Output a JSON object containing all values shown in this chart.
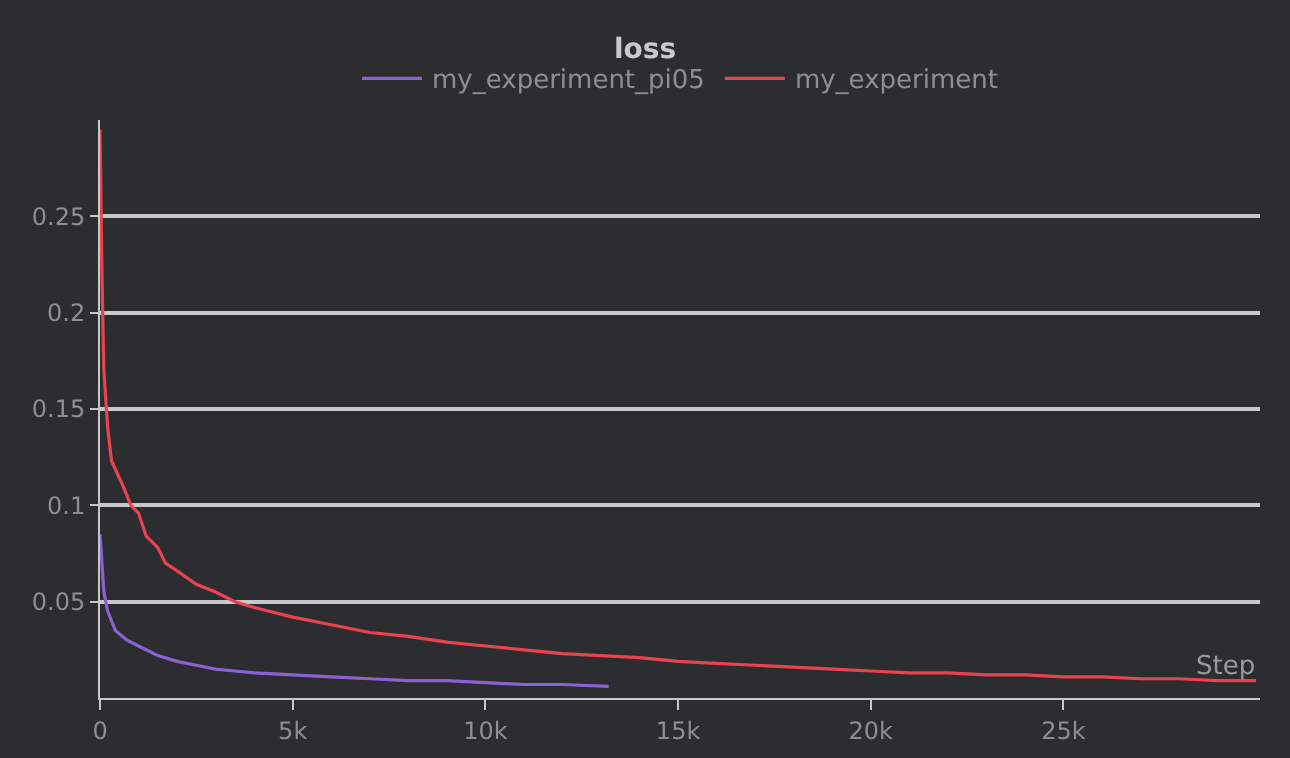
{
  "chart_data": {
    "type": "line",
    "title": "loss",
    "xlabel": "Step",
    "series": [
      {
        "name": "my_experiment_pi05",
        "color": "#8a63d2",
        "x": [
          0,
          50,
          100,
          200,
          400,
          700,
          1000,
          1500,
          2000,
          2500,
          3000,
          3500,
          4000,
          5000,
          6000,
          7000,
          8000,
          9000,
          10000,
          11000,
          12000,
          13200
        ],
        "values": [
          0.085,
          0.07,
          0.055,
          0.045,
          0.035,
          0.03,
          0.027,
          0.022,
          0.019,
          0.017,
          0.015,
          0.014,
          0.013,
          0.012,
          0.011,
          0.01,
          0.009,
          0.009,
          0.008,
          0.007,
          0.007,
          0.006
        ]
      },
      {
        "name": "my_experiment",
        "color": "#e8434f",
        "x": [
          0,
          50,
          100,
          200,
          300,
          600,
          800,
          1000,
          1200,
          1500,
          1700,
          2000,
          2500,
          3000,
          3500,
          4000,
          5000,
          6000,
          7000,
          8000,
          9000,
          10000,
          11000,
          12000,
          13000,
          14000,
          15000,
          16000,
          17000,
          18000,
          19000,
          20000,
          21000,
          22000,
          23000,
          24000,
          25000,
          26000,
          27000,
          28000,
          29000,
          30000
        ],
        "values": [
          0.295,
          0.22,
          0.17,
          0.14,
          0.123,
          0.11,
          0.1,
          0.096,
          0.084,
          0.078,
          0.07,
          0.066,
          0.059,
          0.055,
          0.05,
          0.047,
          0.042,
          0.038,
          0.034,
          0.032,
          0.029,
          0.027,
          0.025,
          0.023,
          0.022,
          0.021,
          0.019,
          0.018,
          0.017,
          0.016,
          0.015,
          0.014,
          0.013,
          0.013,
          0.012,
          0.012,
          0.011,
          0.011,
          0.01,
          0.01,
          0.009,
          0.009
        ]
      }
    ],
    "xlim": [
      0,
      30100
    ],
    "xticks": [
      {
        "value": 0,
        "label": "0"
      },
      {
        "value": 5000,
        "label": "5k"
      },
      {
        "value": 10000,
        "label": "10k"
      },
      {
        "value": 15000,
        "label": "15k"
      },
      {
        "value": 20000,
        "label": "20k"
      },
      {
        "value": 25000,
        "label": "25k"
      }
    ],
    "ylim": [
      0,
      0.3
    ],
    "yticks": [
      0.05,
      0.1,
      0.15,
      0.2,
      0.25
    ],
    "grid": "y",
    "legend": "top",
    "line_style": "solid"
  }
}
